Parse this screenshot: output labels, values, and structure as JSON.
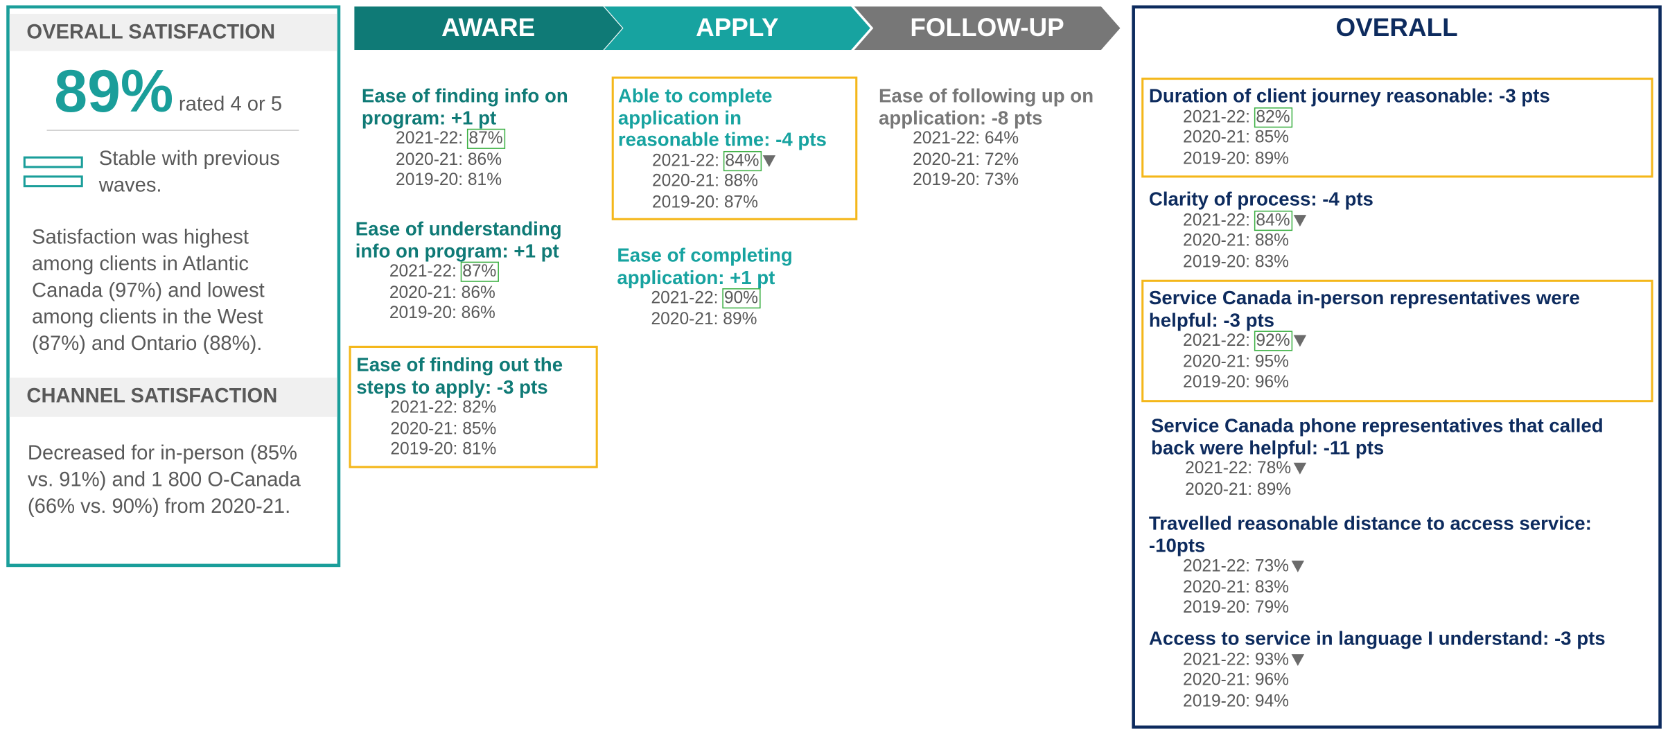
{
  "left": {
    "title": "OVERALL SATISFACTION",
    "big_value": "89%",
    "big_note": "rated 4 or 5",
    "stable": "Stable with previous waves.",
    "paragraph": "Satisfaction was highest among clients in Atlantic Canada (97%) and lowest among clients in the West (87%) and Ontario (88%).",
    "channel_title": "CHANNEL SATISFACTION",
    "channel_paragraph": "Decreased for in-person (85% vs. 91%) and 1 800 O-Canada (66% vs. 90%) from 2020-21."
  },
  "columns": [
    {
      "header": "AWARE",
      "color": "#0f7a76",
      "items": [
        {
          "title": "Ease of finding info on program: +1 pt",
          "highlight": false,
          "rows": [
            {
              "period": "2021-22:",
              "value": "87%",
              "boxed": true,
              "decrease": false
            },
            {
              "period": "2020-21:",
              "value": "86%",
              "boxed": false,
              "decrease": false
            },
            {
              "period": "2019-20:",
              "value": "81%",
              "boxed": false,
              "decrease": false
            }
          ]
        },
        {
          "title": "Ease of understanding info on program: +1 pt",
          "highlight": false,
          "rows": [
            {
              "period": "2021-22:",
              "value": "87%",
              "boxed": true,
              "decrease": false
            },
            {
              "period": "2020-21:",
              "value": "86%",
              "boxed": false,
              "decrease": false
            },
            {
              "period": "2019-20:",
              "value": "86%",
              "boxed": false,
              "decrease": false
            }
          ]
        },
        {
          "title": "Ease of finding out the steps to apply: -3 pts",
          "highlight": true,
          "rows": [
            {
              "period": "2021-22:",
              "value": "82%",
              "boxed": false,
              "decrease": false
            },
            {
              "period": "2020-21:",
              "value": "85%",
              "boxed": false,
              "decrease": false
            },
            {
              "period": "2019-20:",
              "value": "81%",
              "boxed": false,
              "decrease": false
            }
          ]
        }
      ]
    },
    {
      "header": "APPLY",
      "color": "#17a3a0",
      "items": [
        {
          "title": "Able to complete application in reasonable time: -4 pts",
          "highlight": true,
          "rows": [
            {
              "period": "2021-22:",
              "value": "84%",
              "boxed": true,
              "decrease": true
            },
            {
              "period": "2020-21:",
              "value": "88%",
              "boxed": false,
              "decrease": false
            },
            {
              "period": "2019-20:",
              "value": "87%",
              "boxed": false,
              "decrease": false
            }
          ]
        },
        {
          "title": "Ease of completing application: +1 pt",
          "highlight": false,
          "rows": [
            {
              "period": "2021-22:",
              "value": "90%",
              "boxed": true,
              "decrease": false
            },
            {
              "period": "2020-21:",
              "value": "89%",
              "boxed": false,
              "decrease": false
            }
          ]
        }
      ]
    },
    {
      "header": "FOLLOW-UP",
      "color": "#777777",
      "items": [
        {
          "title": "Ease of following up on application: -8 pts",
          "highlight": false,
          "rows": [
            {
              "period": "2021-22:",
              "value": "64%",
              "boxed": false,
              "decrease": false
            },
            {
              "period": "2020-21:",
              "value": "72%",
              "boxed": false,
              "decrease": false
            },
            {
              "period": "2019-20:",
              "value": "73%",
              "boxed": false,
              "decrease": false
            }
          ]
        }
      ]
    },
    {
      "header": "OVERALL",
      "color": "#0d2b5e",
      "items": [
        {
          "title": "Duration of client journey reasonable: -3 pts",
          "highlight": true,
          "rows": [
            {
              "period": "2021-22:",
              "value": "82%",
              "boxed": true,
              "decrease": false
            },
            {
              "period": "2020-21:",
              "value": "85%",
              "boxed": false,
              "decrease": false
            },
            {
              "period": "2019-20:",
              "value": "89%",
              "boxed": false,
              "decrease": false
            }
          ]
        },
        {
          "title": "Clarity of process: -4 pts",
          "highlight": false,
          "rows": [
            {
              "period": "2021-22:",
              "value": "84%",
              "boxed": true,
              "decrease": true
            },
            {
              "period": "2020-21:",
              "value": "88%",
              "boxed": false,
              "decrease": false
            },
            {
              "period": "2019-20:",
              "value": "83%",
              "boxed": false,
              "decrease": false
            }
          ]
        },
        {
          "title": "Service Canada in-person representatives were helpful: -3 pts",
          "highlight": true,
          "rows": [
            {
              "period": "2021-22:",
              "value": "92%",
              "boxed": true,
              "decrease": true
            },
            {
              "period": "2020-21:",
              "value": "95%",
              "boxed": false,
              "decrease": false
            },
            {
              "period": "2019-20:",
              "value": "96%",
              "boxed": false,
              "decrease": false
            }
          ]
        },
        {
          "title": "Service Canada phone representatives that called back were helpful: -11 pts",
          "highlight": false,
          "rows": [
            {
              "period": "2021-22:",
              "value": "78%",
              "boxed": false,
              "decrease": true
            },
            {
              "period": "2020-21:",
              "value": "89%",
              "boxed": false,
              "decrease": false
            }
          ]
        },
        {
          "title": "Travelled reasonable distance to access service: -10pts",
          "highlight": false,
          "rows": [
            {
              "period": "2021-22:",
              "value": "73%",
              "boxed": false,
              "decrease": true
            },
            {
              "period": "2020-21:",
              "value": "83%",
              "boxed": false,
              "decrease": false
            },
            {
              "period": "2019-20:",
              "value": "79%",
              "boxed": false,
              "decrease": false
            }
          ]
        },
        {
          "title": "Access to service in language I understand: -3 pts",
          "highlight": false,
          "rows": [
            {
              "period": "2021-22:",
              "value": "93%",
              "boxed": false,
              "decrease": true
            },
            {
              "period": "2020-21:",
              "value": "96%",
              "boxed": false,
              "decrease": false
            },
            {
              "period": "2019-20:",
              "value": "94%",
              "boxed": false,
              "decrease": false
            }
          ]
        }
      ]
    }
  ]
}
